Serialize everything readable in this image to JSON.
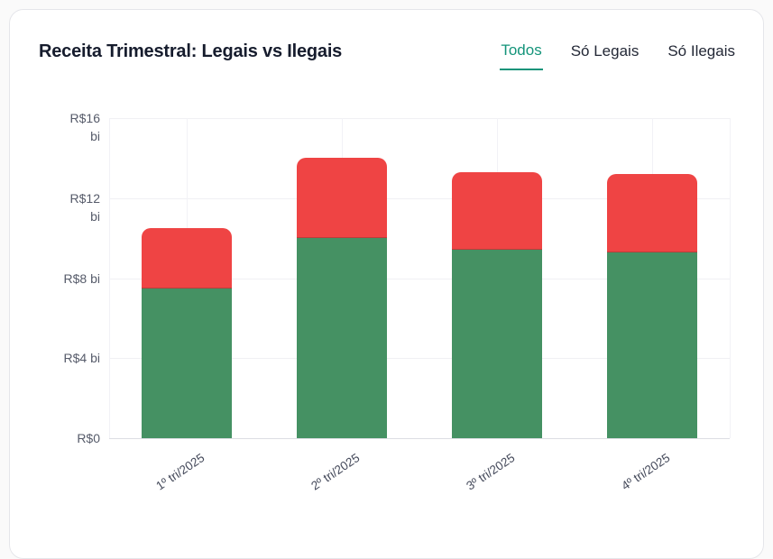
{
  "header": {
    "title": "Receita Trimestral: Legais vs Ilegais",
    "active_tab_color": "#14947a",
    "tabs": [
      {
        "id": "todos",
        "label": "Todos",
        "active": true
      },
      {
        "id": "so-legais",
        "label": "Só Legais",
        "active": false
      },
      {
        "id": "so-ilegais",
        "label": "Só Ilegais",
        "active": false
      }
    ]
  },
  "chart_data": {
    "type": "bar",
    "stacked": true,
    "title": "Receita Trimestral: Legais vs Ilegais",
    "categories": [
      "1º tri/2025",
      "2º tri/2025",
      "3º tri/2025",
      "4º tri/2025"
    ],
    "series": [
      {
        "name": "Legais",
        "color": "#459163",
        "values": [
          7.5,
          10.0,
          9.4,
          9.3
        ]
      },
      {
        "name": "Ilegais",
        "color": "#ef4444",
        "values": [
          3.0,
          4.0,
          3.9,
          3.9
        ]
      }
    ],
    "totals": [
      10.5,
      14.0,
      13.3,
      13.2
    ],
    "unit": "R$ bi",
    "ylim": [
      0,
      16
    ],
    "y_ticks": [
      {
        "value": 0,
        "label": "R$0"
      },
      {
        "value": 4,
        "label": "R$4 bi"
      },
      {
        "value": 8,
        "label": "R$8 bi"
      },
      {
        "value": 12,
        "label": "R$12 bi",
        "wrap": true
      },
      {
        "value": 16,
        "label": "R$16 bi",
        "wrap": true
      }
    ],
    "grid": true,
    "legend": false
  }
}
